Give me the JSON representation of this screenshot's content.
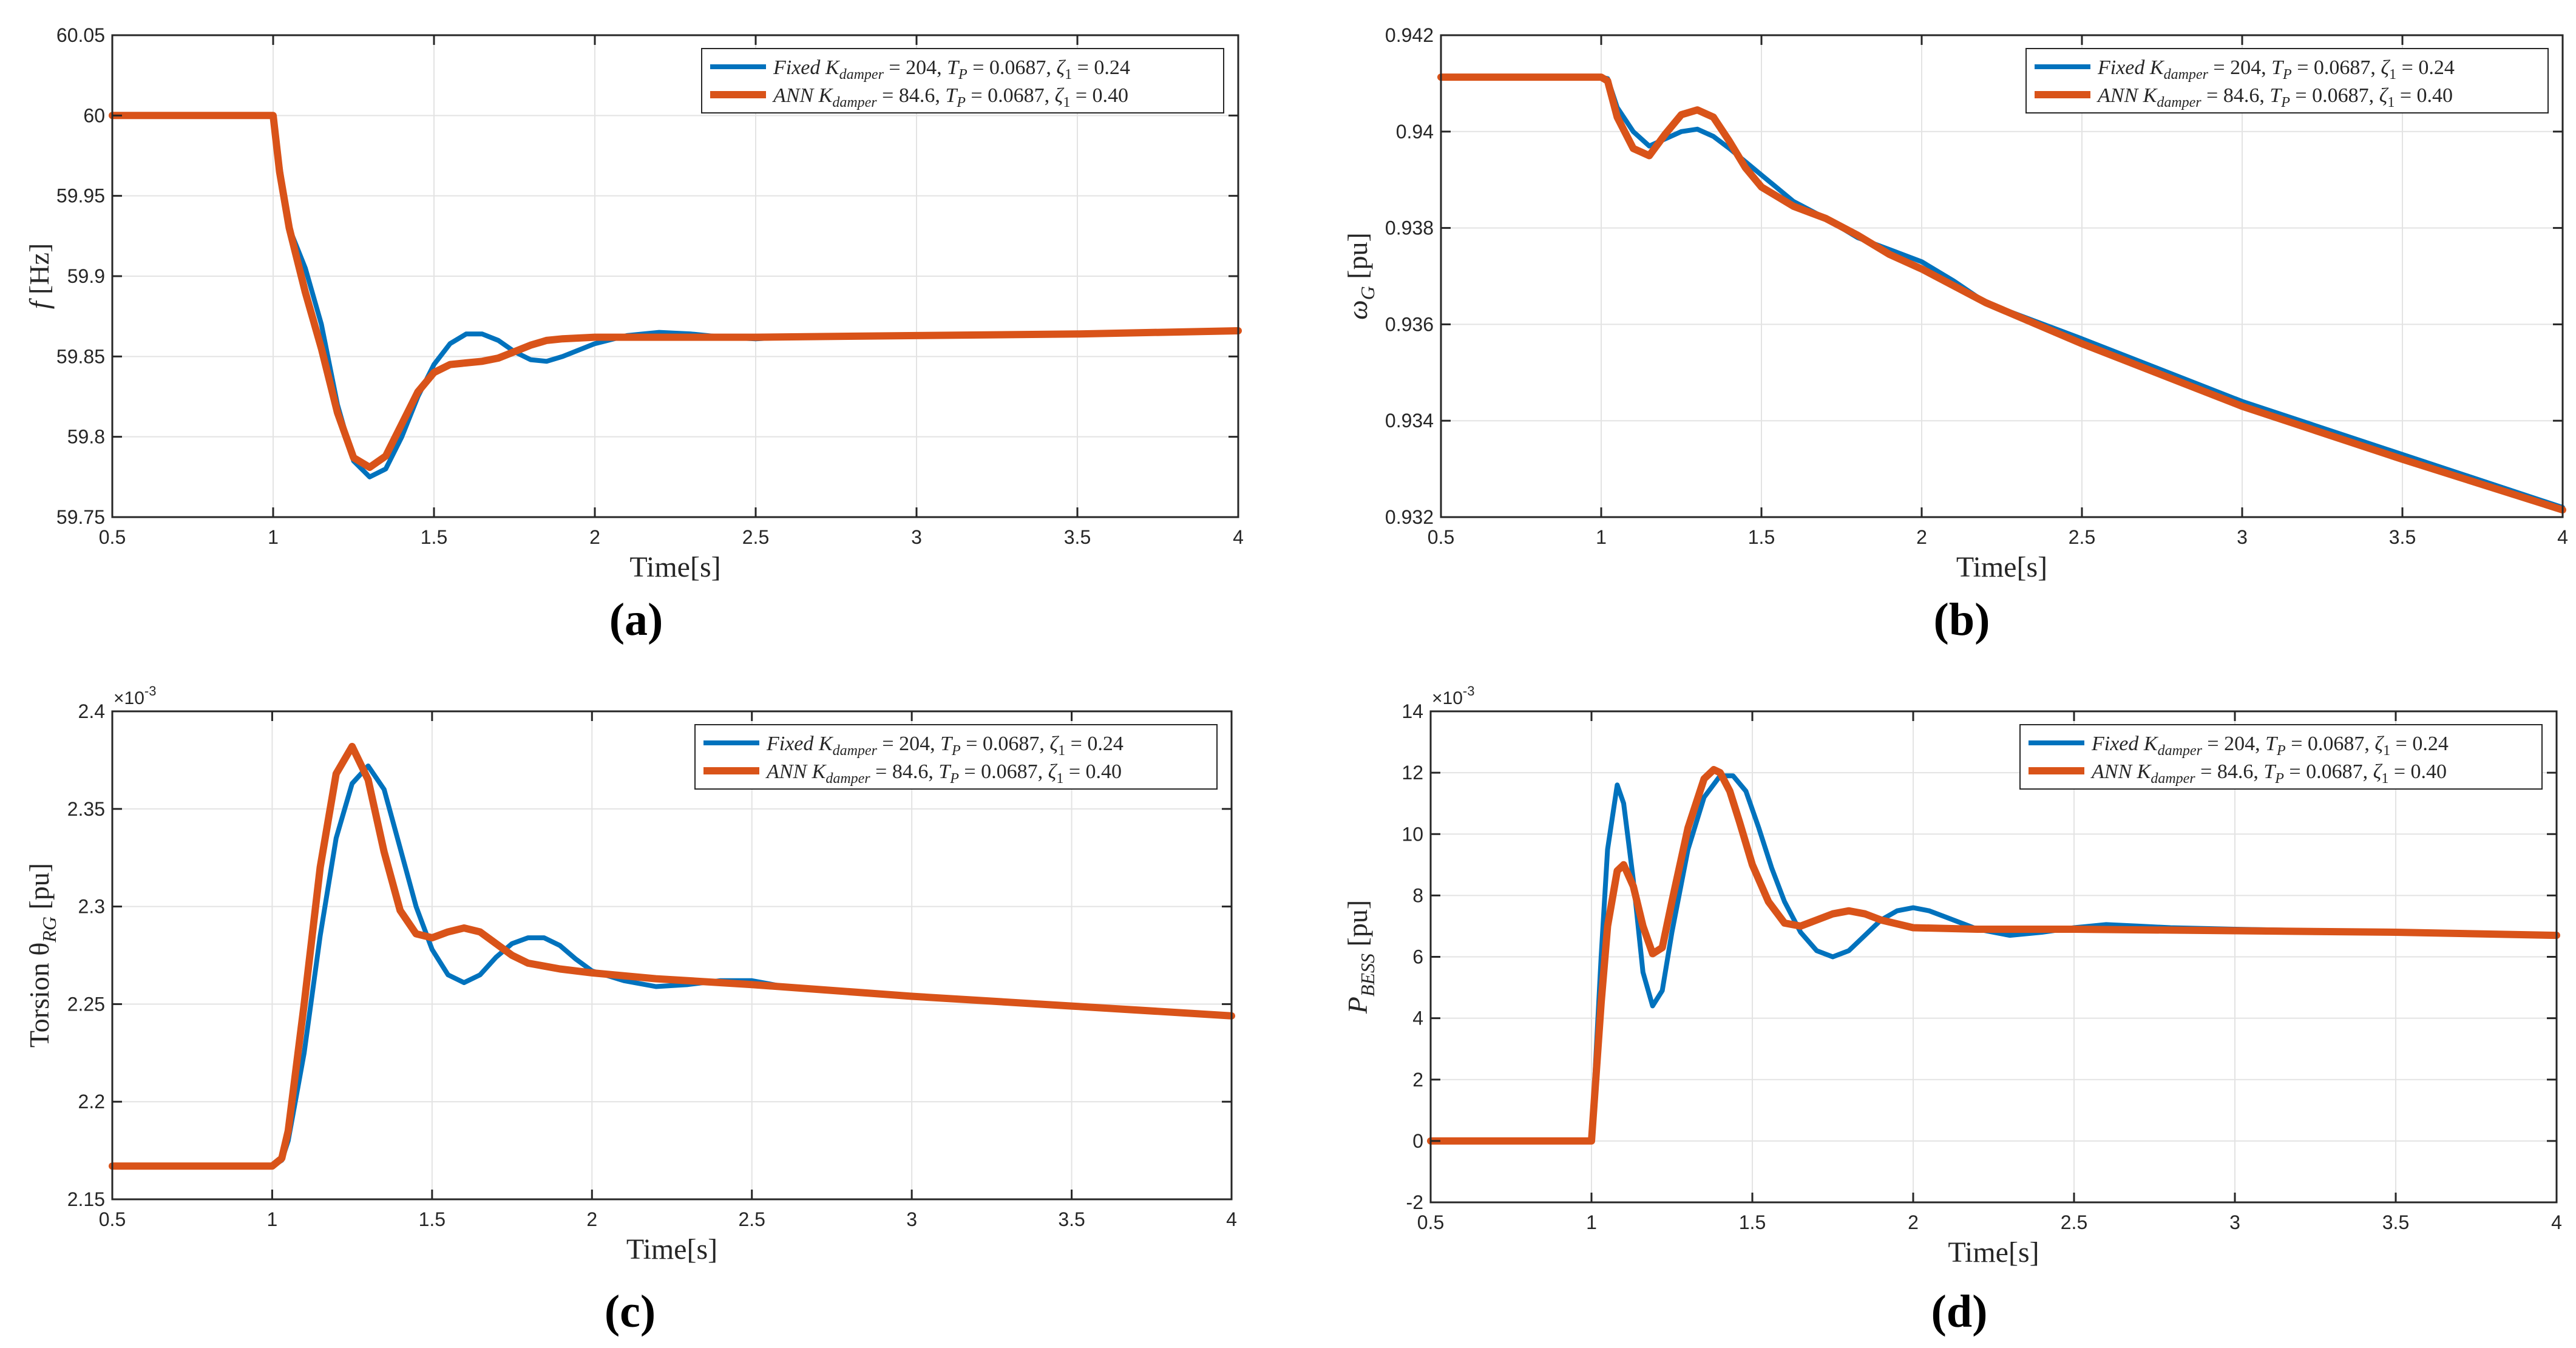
{
  "chart_data": [
    {
      "type": "line",
      "panel_label": "(a)",
      "xlabel": "Time[s]",
      "ylabel": "f [Hz]",
      "xlim": [
        0.5,
        4
      ],
      "ylim": [
        59.75,
        60.05
      ],
      "xticks": [
        "0.5",
        "1",
        "1.5",
        "2",
        "2.5",
        "3",
        "3.5",
        "4"
      ],
      "yticks": [
        "59.75",
        "59.8",
        "59.85",
        "59.9",
        "59.95",
        "60",
        "60.05"
      ],
      "grid": true,
      "legend_position": "top-right",
      "series": [
        {
          "name": "Fixed K_damper = 204, T_P = 0.0687, ζ1 = 0.24",
          "legend_prefix": "Fixed",
          "legend_gain": "K",
          "legend_gain_sub": "damper",
          "legend_gain_value": " = 204, ",
          "legend_tp": "T",
          "legend_tp_sub": "P",
          "legend_tp_value": " = 0.0687, ",
          "legend_zeta": "ζ",
          "legend_zeta_sub": "1",
          "legend_zeta_value": " = 0.24",
          "color": "#0072BD",
          "x": [
            0.5,
            1.0,
            1.02,
            1.05,
            1.1,
            1.15,
            1.2,
            1.25,
            1.3,
            1.35,
            1.4,
            1.45,
            1.5,
            1.55,
            1.6,
            1.65,
            1.7,
            1.75,
            1.8,
            1.85,
            1.9,
            2.0,
            2.1,
            2.2,
            2.3,
            2.4,
            2.5,
            2.6,
            2.8,
            3.0,
            3.5,
            4.0
          ],
          "y": [
            60.0,
            60.0,
            59.97,
            59.93,
            59.905,
            59.87,
            59.82,
            59.785,
            59.775,
            59.78,
            59.8,
            59.825,
            59.845,
            59.858,
            59.864,
            59.864,
            59.86,
            59.853,
            59.848,
            59.847,
            59.85,
            59.858,
            59.863,
            59.865,
            59.864,
            59.862,
            59.861,
            59.862,
            59.863,
            59.863,
            59.864,
            59.866
          ]
        },
        {
          "name": "ANN K_damper = 84.6, T_P = 0.0687, ζ1 = 0.40",
          "legend_prefix": "ANN",
          "legend_gain": "K",
          "legend_gain_sub": "damper",
          "legend_gain_value": " = 84.6, ",
          "legend_tp": "T",
          "legend_tp_sub": "P",
          "legend_tp_value": " = 0.0687, ",
          "legend_zeta": "ζ",
          "legend_zeta_sub": "1",
          "legend_zeta_value": " = 0.40",
          "color": "#D95319",
          "x": [
            0.5,
            1.0,
            1.02,
            1.05,
            1.1,
            1.15,
            1.2,
            1.25,
            1.3,
            1.35,
            1.4,
            1.45,
            1.5,
            1.55,
            1.6,
            1.65,
            1.7,
            1.75,
            1.8,
            1.85,
            1.9,
            2.0,
            2.1,
            2.2,
            2.5,
            3.0,
            3.5,
            4.0
          ],
          "y": [
            60.0,
            60.0,
            59.965,
            59.93,
            59.89,
            59.855,
            59.815,
            59.787,
            59.781,
            59.788,
            59.808,
            59.828,
            59.84,
            59.845,
            59.846,
            59.847,
            59.849,
            59.853,
            59.857,
            59.86,
            59.861,
            59.862,
            59.862,
            59.862,
            59.862,
            59.863,
            59.864,
            59.866
          ]
        }
      ]
    },
    {
      "type": "line",
      "panel_label": "(b)",
      "xlabel": "Time[s]",
      "ylabel": "ωG [pu]",
      "ylabel_main": "ω",
      "ylabel_sub": "G",
      "ylabel_unit": " [pu]",
      "xlim": [
        0.5,
        4
      ],
      "ylim": [
        0.932,
        0.942
      ],
      "xticks": [
        "0.5",
        "1",
        "1.5",
        "2",
        "2.5",
        "3",
        "3.5",
        "4"
      ],
      "yticks": [
        "0.932",
        "0.934",
        "0.936",
        "0.938",
        "0.94",
        "0.942"
      ],
      "grid": true,
      "legend_position": "top-right",
      "series": [
        {
          "name": "Fixed K_damper = 204, T_P = 0.0687, ζ1 = 0.24",
          "legend_prefix": "Fixed",
          "legend_gain": "K",
          "legend_gain_sub": "damper",
          "legend_gain_value": " = 204, ",
          "legend_tp": "T",
          "legend_tp_sub": "P",
          "legend_tp_value": " = 0.0687, ",
          "legend_zeta": "ζ",
          "legend_zeta_sub": "1",
          "legend_zeta_value": " = 0.24",
          "color": "#0072BD",
          "x": [
            0.5,
            1.0,
            1.02,
            1.05,
            1.1,
            1.15,
            1.2,
            1.25,
            1.3,
            1.35,
            1.4,
            1.5,
            1.6,
            1.7,
            1.8,
            1.9,
            2.0,
            2.1,
            2.2,
            2.5,
            3.0,
            3.5,
            4.0
          ],
          "y": [
            0.94113,
            0.94113,
            0.9411,
            0.9405,
            0.94,
            0.9397,
            0.93985,
            0.94,
            0.94005,
            0.9399,
            0.93965,
            0.9391,
            0.93855,
            0.9382,
            0.9378,
            0.93755,
            0.9373,
            0.9369,
            0.93645,
            0.9357,
            0.9344,
            0.9333,
            0.9322
          ]
        },
        {
          "name": "ANN K_damper = 84.6, T_P = 0.0687, ζ1 = 0.40",
          "legend_prefix": "ANN",
          "legend_gain": "K",
          "legend_gain_sub": "damper",
          "legend_gain_value": " = 84.6, ",
          "legend_tp": "T",
          "legend_tp_sub": "P",
          "legend_tp_value": " = 0.0687, ",
          "legend_zeta": "ζ",
          "legend_zeta_sub": "1",
          "legend_zeta_value": " = 0.40",
          "color": "#D95319",
          "x": [
            0.5,
            1.0,
            1.02,
            1.05,
            1.1,
            1.15,
            1.2,
            1.25,
            1.3,
            1.35,
            1.4,
            1.45,
            1.5,
            1.6,
            1.7,
            1.8,
            1.9,
            2.0,
            2.2,
            2.5,
            3.0,
            3.5,
            4.0
          ],
          "y": [
            0.94113,
            0.94113,
            0.94105,
            0.9403,
            0.93965,
            0.9395,
            0.93995,
            0.94035,
            0.94045,
            0.9403,
            0.9398,
            0.93925,
            0.93885,
            0.93845,
            0.9382,
            0.93785,
            0.93745,
            0.93715,
            0.93645,
            0.9356,
            0.9343,
            0.9332,
            0.93215
          ]
        }
      ]
    },
    {
      "type": "line",
      "panel_label": "(c)",
      "xlabel": "Time[s]",
      "ylabel": "Torsion θRG [pu]",
      "ylabel_main": "Torsion θ",
      "ylabel_sub": "RG",
      "ylabel_unit": " [pu]",
      "exponent": "×10^-3",
      "exponent_base": "×10",
      "exponent_power": "-3",
      "xlim": [
        0.5,
        4
      ],
      "ylim": [
        2.15,
        2.4
      ],
      "xticks": [
        "0.5",
        "1",
        "1.5",
        "2",
        "2.5",
        "3",
        "3.5",
        "4"
      ],
      "yticks": [
        "2.15",
        "2.2",
        "2.25",
        "2.3",
        "2.35",
        "2.4"
      ],
      "grid": true,
      "legend_position": "top-right",
      "series": [
        {
          "name": "Fixed K_damper = 204, T_P = 0.0687, ζ1 = 0.24",
          "legend_prefix": "Fixed",
          "legend_gain": "K",
          "legend_gain_sub": "damper",
          "legend_gain_value": " = 204, ",
          "legend_tp": "T",
          "legend_tp_sub": "P",
          "legend_tp_value": " = 0.0687, ",
          "legend_zeta": "ζ",
          "legend_zeta_sub": "1",
          "legend_zeta_value": " = 0.24",
          "color": "#0072BD",
          "x": [
            0.5,
            1.0,
            1.03,
            1.05,
            1.1,
            1.15,
            1.2,
            1.25,
            1.3,
            1.35,
            1.4,
            1.45,
            1.5,
            1.55,
            1.6,
            1.65,
            1.7,
            1.75,
            1.8,
            1.85,
            1.9,
            1.95,
            2.0,
            2.1,
            2.2,
            2.3,
            2.4,
            2.5,
            2.6,
            2.8,
            3.0,
            3.5,
            4.0
          ],
          "y": [
            2.167,
            2.167,
            2.17,
            2.18,
            2.225,
            2.285,
            2.335,
            2.363,
            2.372,
            2.36,
            2.33,
            2.3,
            2.278,
            2.265,
            2.261,
            2.265,
            2.274,
            2.281,
            2.284,
            2.284,
            2.28,
            2.273,
            2.267,
            2.262,
            2.259,
            2.26,
            2.262,
            2.262,
            2.259,
            2.256,
            2.254,
            2.249,
            2.244
          ]
        },
        {
          "name": "ANN K_damper = 84.6, T_P = 0.0687, ζ1 = 0.40",
          "legend_prefix": "ANN",
          "legend_gain": "K",
          "legend_gain_sub": "damper",
          "legend_gain_value": " = 84.6, ",
          "legend_tp": "T",
          "legend_tp_sub": "P",
          "legend_tp_value": " = 0.0687, ",
          "legend_zeta": "ζ",
          "legend_zeta_sub": "1",
          "legend_zeta_value": " = 0.40",
          "color": "#D95319",
          "x": [
            0.5,
            1.0,
            1.03,
            1.05,
            1.1,
            1.15,
            1.2,
            1.25,
            1.3,
            1.35,
            1.4,
            1.45,
            1.5,
            1.55,
            1.6,
            1.65,
            1.7,
            1.75,
            1.8,
            1.9,
            2.0,
            2.2,
            2.5,
            3.0,
            3.5,
            4.0
          ],
          "y": [
            2.167,
            2.167,
            2.171,
            2.185,
            2.25,
            2.32,
            2.368,
            2.382,
            2.365,
            2.328,
            2.298,
            2.286,
            2.284,
            2.287,
            2.289,
            2.287,
            2.281,
            2.275,
            2.271,
            2.268,
            2.266,
            2.263,
            2.26,
            2.254,
            2.249,
            2.244
          ]
        }
      ]
    },
    {
      "type": "line",
      "panel_label": "(d)",
      "xlabel": "Time[s]",
      "ylabel": "PBESS [pu]",
      "ylabel_main": "P",
      "ylabel_sub": "BESS",
      "ylabel_unit": " [pu]",
      "exponent": "×10^-3",
      "exponent_base": "×10",
      "exponent_power": "-3",
      "xlim": [
        0.5,
        4
      ],
      "ylim": [
        -2,
        14
      ],
      "xticks": [
        "0.5",
        "1",
        "1.5",
        "2",
        "2.5",
        "3",
        "3.5",
        "4"
      ],
      "yticks": [
        "-2",
        "0",
        "2",
        "4",
        "6",
        "8",
        "10",
        "12",
        "14"
      ],
      "grid": true,
      "legend_position": "top-right",
      "series": [
        {
          "name": "Fixed K_damper = 204, T_P = 0.0687, ζ1 = 0.24",
          "legend_prefix": "Fixed",
          "legend_gain": "K",
          "legend_gain_sub": "damper",
          "legend_gain_value": " = 204, ",
          "legend_tp": "T",
          "legend_tp_sub": "P",
          "legend_tp_value": " = 0.0687, ",
          "legend_zeta": "ζ",
          "legend_zeta_sub": "1",
          "legend_zeta_value": " = 0.24",
          "color": "#0072BD",
          "x": [
            0.5,
            1.0,
            1.01,
            1.03,
            1.05,
            1.08,
            1.1,
            1.13,
            1.16,
            1.19,
            1.22,
            1.25,
            1.3,
            1.35,
            1.4,
            1.44,
            1.48,
            1.52,
            1.56,
            1.6,
            1.65,
            1.7,
            1.75,
            1.8,
            1.85,
            1.9,
            1.95,
            2.0,
            2.05,
            2.1,
            2.2,
            2.3,
            2.4,
            2.5,
            2.6,
            2.7,
            2.8,
            3.0,
            3.5,
            4.0
          ],
          "y": [
            0.0,
            0.0,
            2.0,
            6.0,
            9.5,
            11.6,
            11.0,
            8.5,
            5.5,
            4.4,
            4.9,
            6.8,
            9.5,
            11.2,
            11.9,
            11.9,
            11.4,
            10.2,
            8.9,
            7.8,
            6.8,
            6.2,
            6.0,
            6.2,
            6.7,
            7.2,
            7.5,
            7.6,
            7.5,
            7.3,
            6.9,
            6.7,
            6.8,
            6.95,
            7.05,
            7.0,
            6.95,
            6.9,
            6.8,
            6.7
          ]
        },
        {
          "name": "ANN K_damper = 84.6, T_P = 0.0687, ζ1 = 0.40",
          "legend_prefix": "ANN",
          "legend_gain": "K",
          "legend_gain_sub": "damper",
          "legend_gain_value": " = 84.6, ",
          "legend_tp": "T",
          "legend_tp_sub": "P",
          "legend_tp_value": " = 0.0687, ",
          "legend_zeta": "ζ",
          "legend_zeta_sub": "1",
          "legend_zeta_value": " = 0.40",
          "color": "#D95319",
          "x": [
            0.5,
            1.0,
            1.01,
            1.03,
            1.05,
            1.08,
            1.1,
            1.13,
            1.16,
            1.19,
            1.22,
            1.25,
            1.3,
            1.35,
            1.38,
            1.4,
            1.43,
            1.46,
            1.5,
            1.55,
            1.6,
            1.65,
            1.7,
            1.75,
            1.8,
            1.85,
            1.9,
            2.0,
            2.2,
            2.5,
            3.0,
            3.5,
            4.0
          ],
          "y": [
            0.0,
            0.0,
            1.5,
            4.5,
            7.0,
            8.8,
            9.0,
            8.3,
            7.0,
            6.1,
            6.3,
            7.8,
            10.2,
            11.8,
            12.1,
            12.0,
            11.4,
            10.4,
            9.0,
            7.8,
            7.1,
            7.0,
            7.2,
            7.4,
            7.5,
            7.4,
            7.2,
            6.95,
            6.9,
            6.9,
            6.85,
            6.8,
            6.7
          ]
        }
      ]
    }
  ]
}
